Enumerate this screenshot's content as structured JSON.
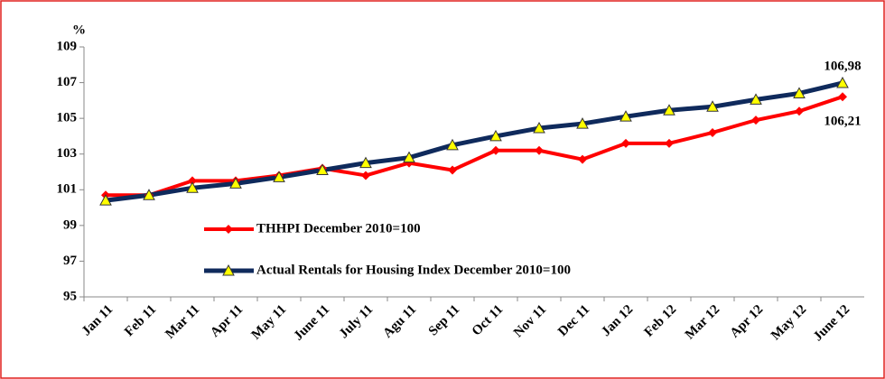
{
  "chart_data": {
    "type": "line",
    "y_unit": "%",
    "categories": [
      "Jan 11",
      "Feb 11",
      "Mar 11",
      "Apr 11",
      "May 11",
      "June 11",
      "July 11",
      "Agu 11",
      "Sep 11",
      "Oct 11",
      "Nov 11",
      "Dec 11",
      "Jan 12",
      "Feb 12",
      "Mar 12",
      "Apr 12",
      "May 12",
      "June 12"
    ],
    "series": [
      {
        "name": "THHPI December 2010=100",
        "color": "#ff0000",
        "marker": "diamond",
        "values": [
          100.7,
          100.7,
          101.5,
          101.5,
          101.8,
          102.2,
          101.8,
          102.5,
          102.1,
          103.2,
          103.2,
          102.7,
          103.6,
          103.6,
          104.2,
          104.9,
          105.4,
          106.21
        ],
        "value_labels": [
          null,
          null,
          null,
          null,
          null,
          null,
          null,
          null,
          null,
          null,
          null,
          null,
          null,
          null,
          null,
          null,
          null,
          "106,21"
        ]
      },
      {
        "name": "Actual Rentals for Housing Index December 2010=100",
        "color": "#0f2a5c",
        "marker": "triangle",
        "marker_color": "#ffff00",
        "values": [
          100.4,
          100.7,
          101.1,
          101.35,
          101.7,
          102.1,
          102.5,
          102.8,
          103.5,
          104.0,
          104.45,
          104.7,
          105.1,
          105.45,
          105.65,
          106.05,
          106.4,
          106.98
        ],
        "value_labels": [
          null,
          null,
          null,
          null,
          null,
          null,
          null,
          null,
          null,
          null,
          null,
          null,
          null,
          null,
          null,
          null,
          null,
          "106,98"
        ]
      }
    ],
    "ylim": [
      95,
      109
    ],
    "yticks": [
      95,
      97,
      99,
      101,
      103,
      105,
      107,
      109
    ],
    "grid": false,
    "border_color": "#e0201e"
  }
}
